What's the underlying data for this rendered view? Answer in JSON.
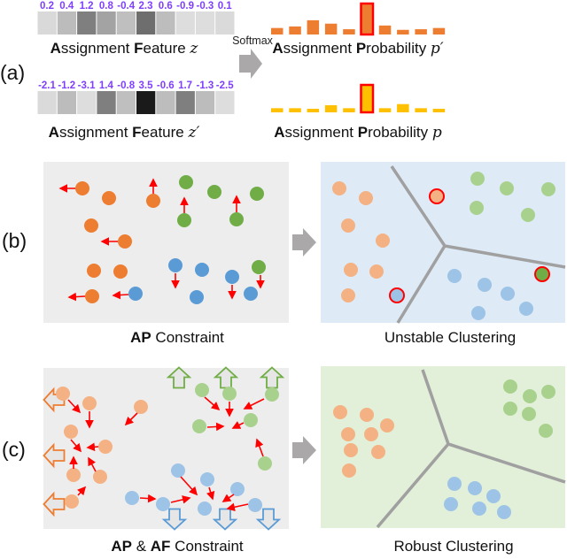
{
  "colors": {
    "number_text": "#7f3fff",
    "orange": "#ed7d31",
    "orange_light": "#f4b183",
    "green": "#70ad47",
    "green_light": "#a9d18e",
    "blue": "#5b9bd5",
    "blue_light": "#9dc3e6",
    "yellow": "#ffc000",
    "highlight": "#ff0000",
    "panel_gray": "#ededed",
    "panel_blue": "#deebf7",
    "panel_green": "#e2f0d9",
    "divider": "#a0a0a0",
    "arrow_gray": "#aaa8a8",
    "constraint_arrow": "#ff0000"
  },
  "panel_a": {
    "label": "(a)",
    "softmax_label": "Softmax",
    "feature_z": {
      "values": [
        "0.2",
        "0.4",
        "1.2",
        "0.8",
        "-0.4",
        "2.3",
        "0.6",
        "-0.9",
        "-0.3",
        "0.1"
      ],
      "cell_colors": [
        "#d9d9d9",
        "#bcbcbc",
        "#7f7f7f",
        "#a3a3a3",
        "#bfbfbf",
        "#6e6e6e",
        "#bdbdbd",
        "#dddddd",
        "#dddddd",
        "#dadada"
      ],
      "label_parts": [
        "A",
        "ssignment ",
        "F",
        "eature "
      ],
      "var": "z"
    },
    "feature_z_prime": {
      "values": [
        "-2.1",
        "-1.2",
        "-3.1",
        "1.4",
        "-0.8",
        "3.5",
        "-0.6",
        "1.7",
        "-1.3",
        "-2.5"
      ],
      "cell_colors": [
        "#dadada",
        "#bcbcbc",
        "#dddddd",
        "#7f7f7f",
        "#bfbfbf",
        "#1a1a1a",
        "#bdbdbd",
        "#7f7f7f",
        "#bcbcbc",
        "#dddddd"
      ],
      "label_parts": [
        "A",
        "ssignment ",
        "F",
        "eature "
      ],
      "var": "z′"
    },
    "probability_p_prime": {
      "relative_levels": [
        0.21,
        0.26,
        0.46,
        0.35,
        0.17,
        1,
        0.29,
        0.15,
        0.17,
        0.21
      ],
      "highlighted_index": 5,
      "label_parts": [
        "A",
        "ssignment ",
        "P",
        "robability "
      ],
      "var": "p′"
    },
    "probability_p": {
      "relative_levels": [
        0.15,
        0.15,
        0.13,
        0.26,
        0.15,
        1,
        0.15,
        0.3,
        0.15,
        0.13
      ],
      "highlighted_index": 5,
      "label_parts": [
        "A",
        "ssignment ",
        "P",
        "robability "
      ],
      "var": "p"
    }
  },
  "panel_b": {
    "label": "(b)",
    "left_caption_bold": "AP",
    "left_caption_rest": " Constraint",
    "right_caption": "Unstable Clustering"
  },
  "panel_c": {
    "label": "(c)",
    "left_caption_bold1": "AP",
    "left_caption_mid": " & ",
    "left_caption_bold2": "AF",
    "left_caption_rest": " Constraint",
    "right_caption": "Robust Clustering"
  }
}
